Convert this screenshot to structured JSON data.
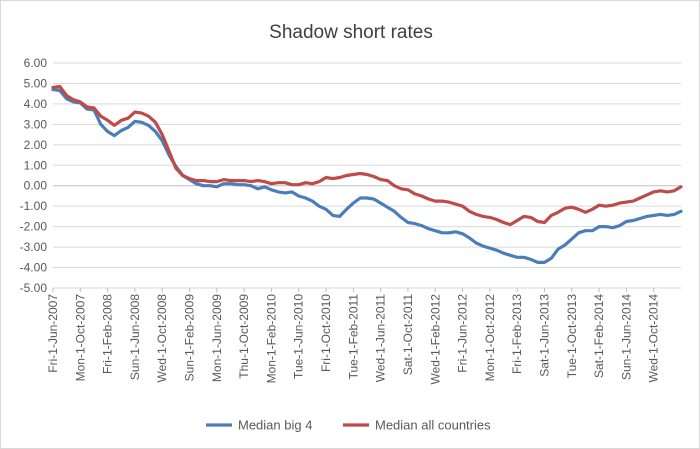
{
  "chart_data": {
    "type": "line",
    "title": "Shadow short rates",
    "xlabel": "",
    "ylabel": "",
    "ylim": [
      -5,
      6
    ],
    "y_ticks": [
      "6.00",
      "5.00",
      "4.00",
      "3.00",
      "2.00",
      "1.00",
      "0.00",
      "-1.00",
      "-2.00",
      "-3.00",
      "-4.00",
      "-5.00"
    ],
    "x_tick_labels": [
      "Fri-1-Jun-2007",
      "Mon-1-Oct-2007",
      "Fri-1-Feb-2008",
      "Sun-1-Jun-2008",
      "Wed-1-Oct-2008",
      "Sun-1-Feb-2009",
      "Mon-1-Jun-2009",
      "Thu-1-Oct-2009",
      "Mon-1-Feb-2010",
      "Tue-1-Jun-2010",
      "Fri-1-Oct-2010",
      "Tue-1-Feb-2011",
      "Wed-1-Jun-2011",
      "Sat-1-Oct-2011",
      "Wed-1-Feb-2012",
      "Fri-1-Jun-2012",
      "Mon-1-Oct-2012",
      "Fri-1-Feb-2013",
      "Sat-1-Jun-2013",
      "Tue-1-Oct-2013",
      "Sat-1-Feb-2014",
      "Sun-1-Jun-2014",
      "Wed-1-Oct-2014"
    ],
    "x_start": "Jun-2007",
    "x_step": "1 month",
    "legend_position": "bottom",
    "grid": true,
    "series": [
      {
        "name": "Median big 4",
        "color": "#4a7ebb",
        "values": [
          4.7,
          4.65,
          4.25,
          4.1,
          4.05,
          3.75,
          3.7,
          3.0,
          2.65,
          2.45,
          2.7,
          2.85,
          3.15,
          3.1,
          2.95,
          2.65,
          2.2,
          1.5,
          0.95,
          0.5,
          0.3,
          0.1,
          0.0,
          0.0,
          -0.05,
          0.1,
          0.1,
          0.05,
          0.05,
          0.0,
          -0.15,
          -0.05,
          -0.2,
          -0.3,
          -0.35,
          -0.3,
          -0.5,
          -0.6,
          -0.75,
          -1.0,
          -1.15,
          -1.45,
          -1.5,
          -1.15,
          -0.85,
          -0.6,
          -0.6,
          -0.65,
          -0.85,
          -1.05,
          -1.25,
          -1.55,
          -1.8,
          -1.85,
          -1.95,
          -2.1,
          -2.2,
          -2.3,
          -2.3,
          -2.25,
          -2.35,
          -2.55,
          -2.8,
          -2.95,
          -3.05,
          -3.15,
          -3.3,
          -3.4,
          -3.5,
          -3.5,
          -3.6,
          -3.75,
          -3.75,
          -3.55,
          -3.1,
          -2.9,
          -2.6,
          -2.3,
          -2.2,
          -2.2,
          -2.0,
          -2.0,
          -2.05,
          -1.95,
          -1.75,
          -1.7,
          -1.6,
          -1.5,
          -1.45,
          -1.4,
          -1.45,
          -1.4,
          -1.25
        ]
      },
      {
        "name": "Median all countries",
        "color": "#be4b48",
        "values": [
          4.8,
          4.85,
          4.4,
          4.2,
          4.1,
          3.85,
          3.8,
          3.4,
          3.2,
          2.95,
          3.2,
          3.3,
          3.6,
          3.55,
          3.4,
          3.1,
          2.5,
          1.7,
          0.85,
          0.5,
          0.35,
          0.25,
          0.25,
          0.2,
          0.2,
          0.3,
          0.25,
          0.25,
          0.25,
          0.2,
          0.25,
          0.2,
          0.1,
          0.15,
          0.15,
          0.05,
          0.05,
          0.15,
          0.1,
          0.2,
          0.4,
          0.35,
          0.4,
          0.5,
          0.55,
          0.6,
          0.55,
          0.45,
          0.3,
          0.25,
          0.0,
          -0.15,
          -0.2,
          -0.4,
          -0.5,
          -0.65,
          -0.75,
          -0.75,
          -0.8,
          -0.9,
          -1.0,
          -1.25,
          -1.4,
          -1.5,
          -1.55,
          -1.65,
          -1.8,
          -1.9,
          -1.7,
          -1.5,
          -1.55,
          -1.75,
          -1.8,
          -1.45,
          -1.3,
          -1.1,
          -1.05,
          -1.15,
          -1.3,
          -1.15,
          -0.95,
          -1.0,
          -0.95,
          -0.85,
          -0.8,
          -0.75,
          -0.6,
          -0.45,
          -0.3,
          -0.25,
          -0.3,
          -0.25,
          -0.05
        ]
      }
    ]
  }
}
